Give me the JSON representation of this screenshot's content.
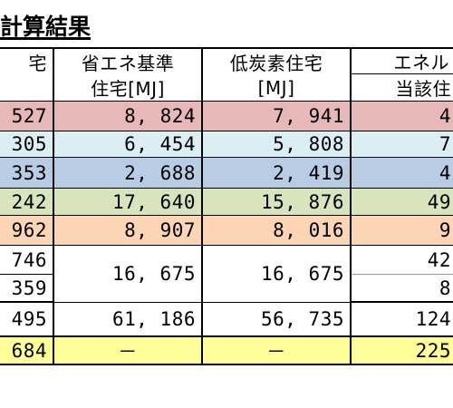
{
  "title": "計算結果",
  "header": {
    "col_a": "宅",
    "col_b_line1": "省エネ基準",
    "col_b_line2": "住宅[MJ]",
    "col_c_line1": "低炭素住宅",
    "col_c_line2": "[MJ]",
    "col_d_line1": "エネル",
    "col_d_line2": "当該住"
  },
  "rows": [
    {
      "a": ", 527",
      "b": "8, 824",
      "c": "7, 941",
      "d": "4"
    },
    {
      "a": ", 305",
      "b": "6, 454",
      "c": "5, 808",
      "d": "7"
    },
    {
      "a": ", 353",
      "b": "2, 688",
      "c": "2, 419",
      "d": "4"
    },
    {
      "a": ", 242",
      "b": "17, 640",
      "c": "15, 876",
      "d": "49"
    },
    {
      "a": ", 962",
      "b": "8, 907",
      "c": "8, 016",
      "d": "9"
    },
    {
      "a": ", 746",
      "d": "42"
    },
    {
      "a": ", 359",
      "b": "16, 675",
      "c": "16, 675",
      "d": "8"
    },
    {
      "a": ", 495",
      "b": "61, 186",
      "c": "56, 735",
      "d": "124"
    },
    {
      "a": ", 684",
      "b": "－",
      "c": "－",
      "d": "225"
    }
  ]
}
